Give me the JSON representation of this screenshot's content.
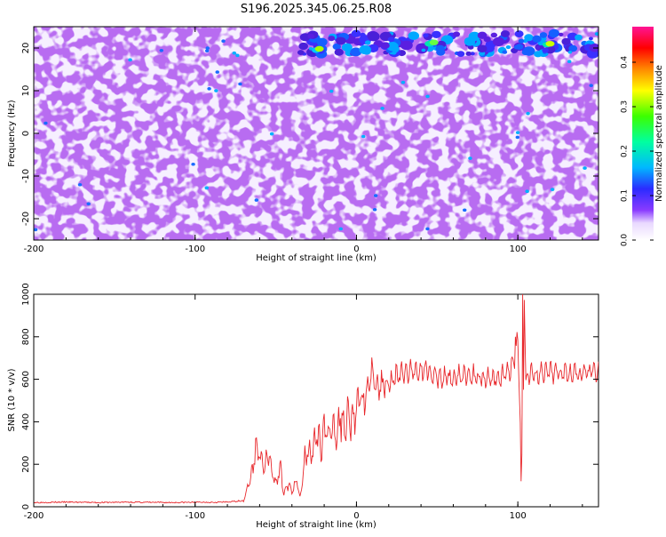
{
  "title": "S196.2025.345.06.25.R08",
  "colors": {
    "snr_line": "#e8262a",
    "axis": "#000000",
    "background": "#ffffff"
  },
  "chart_data": [
    {
      "type": "heatmap",
      "xlabel": "Height of straight line (km)",
      "ylabel": "Frequency (Hz)",
      "xlim": [
        -200,
        150
      ],
      "ylim": [
        -25,
        25
      ],
      "xticks": [
        "-200",
        "-100",
        "0",
        "100"
      ],
      "yticks": [
        "-20",
        "-10",
        "0",
        "10",
        "20"
      ],
      "colorbar": {
        "label": "Normalized spectral amplitude",
        "range": [
          0,
          0.48
        ],
        "ticks": [
          "0.0",
          "0.1",
          "0.2",
          "0.3",
          "0.4"
        ],
        "colormap": "rainbow (white-purple-blue-cyan-green-yellow-red-magenta)"
      },
      "notes": "Mostly low amplitude (0.05-0.12) purple/blue speckle; elevated band near 20-22 Hz for heights above about -35 km with peaks ~0.3-0.35 near heights 45 and 118 km."
    },
    {
      "type": "line",
      "xlabel": "Height of straight line (km)",
      "ylabel": "SNR (10 * v/v)",
      "xlim": [
        -200,
        150
      ],
      "ylim": [
        0,
        1000
      ],
      "xticks": [
        "-200",
        "-100",
        "0",
        "100"
      ],
      "yticks": [
        "0",
        "200",
        "400",
        "600",
        "800",
        "1000"
      ],
      "series": [
        {
          "x": [
            -200,
            -180,
            -160,
            -140,
            -120,
            -100,
            -80,
            -70,
            -65,
            -62,
            -60,
            -57,
            -55,
            -52,
            -50,
            -47,
            -45,
            -42,
            -40,
            -37,
            -35,
            -32,
            -30,
            -27,
            -25,
            -22,
            -20,
            -17,
            -15,
            -12,
            -10,
            -7,
            -5,
            -2,
            0,
            3,
            5,
            8,
            10,
            12,
            15,
            20,
            25,
            30,
            35,
            40,
            45,
            50,
            60,
            70,
            80,
            90,
            95,
            98,
            100,
            102,
            103,
            104,
            105,
            108,
            110,
            120,
            130,
            140,
            150
          ],
          "y": [
            20,
            22,
            20,
            22,
            20,
            21,
            22,
            30,
            150,
            290,
            240,
            180,
            250,
            150,
            120,
            180,
            60,
            110,
            70,
            120,
            40,
            230,
            280,
            250,
            330,
            290,
            380,
            300,
            400,
            350,
            420,
            380,
            450,
            410,
            480,
            520,
            500,
            600,
            650,
            560,
            570,
            590,
            610,
            630,
            640,
            645,
            650,
            600,
            610,
            620,
            605,
            610,
            640,
            700,
            790,
            300,
            120,
            1000,
            600,
            640,
            620,
            630,
            640,
            630,
            640
          ]
        }
      ]
    }
  ]
}
